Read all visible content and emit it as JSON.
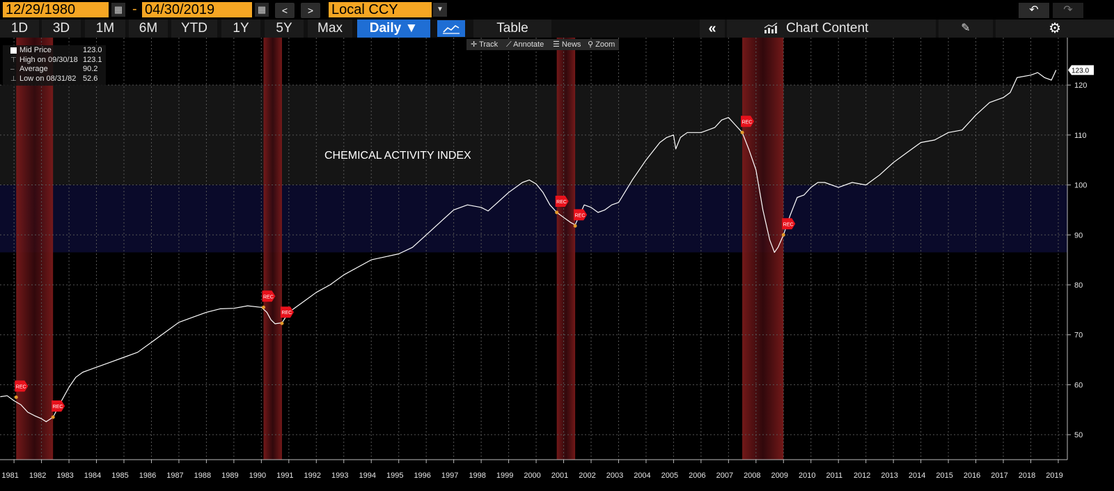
{
  "header": {
    "start_date": "12/29/1980",
    "date_separator": "-",
    "end_date": "04/30/2019",
    "prev_label": "<",
    "next_label": ">",
    "currency": "Local CCY",
    "undo_label": "↶",
    "redo_label": "↷"
  },
  "periods": [
    "1D",
    "3D",
    "1M",
    "6M",
    "YTD",
    "1Y",
    "5Y",
    "Max"
  ],
  "frequency": "Daily ▼",
  "table_label": "Table",
  "collapse_label": "«",
  "chart_content_label": "Chart Content",
  "pen_label": "✎",
  "gear_label": "⚙",
  "tools": [
    "Track",
    "Annotate",
    "News",
    "Zoom"
  ],
  "legend": [
    {
      "label": "Mid Price",
      "value": "123.0"
    },
    {
      "label": "High on 09/30/18",
      "value": "123.1"
    },
    {
      "label": "Average",
      "value": "90.2"
    },
    {
      "label": "Low on 08/31/82",
      "value": "52.6"
    }
  ],
  "colors": {
    "accent": "#f5a623",
    "button": "#1f6ed4",
    "line": "#ffffff",
    "recession": "#6b1414",
    "band": "#0a0a2a"
  },
  "chart_data": {
    "type": "line",
    "title": "CHEMICAL ACTIVITY INDEX",
    "xlabel": "",
    "ylabel": "",
    "xlim": [
      1980.99,
      2019.83
    ],
    "ylim": [
      45,
      129.5
    ],
    "yticks": [
      50,
      60,
      70,
      80,
      90,
      100,
      110,
      120
    ],
    "xticks": [
      1981,
      1982,
      1983,
      1984,
      1985,
      1986,
      1987,
      1988,
      1989,
      1990,
      1991,
      1992,
      1993,
      1994,
      1995,
      1996,
      1997,
      1998,
      1999,
      2000,
      2001,
      2002,
      2003,
      2004,
      2005,
      2006,
      2007,
      2008,
      2009,
      2010,
      2011,
      2012,
      2013,
      2014,
      2015,
      2016,
      2017,
      2018,
      2019
    ],
    "last_value_label": "123.0",
    "grid": true,
    "bands": [
      {
        "from": 100,
        "to": 120,
        "color": "#151515"
      },
      {
        "from": 86.5,
        "to": 100,
        "color": "#0a0a2a"
      }
    ],
    "recessions": [
      {
        "start": 1981.58,
        "end": 1982.92,
        "marker_start": 1981.58,
        "marker_start_y": 57.5,
        "marker_end": 1982.92,
        "marker_end_y": 53.5
      },
      {
        "start": 1990.58,
        "end": 1991.25,
        "marker_start": 1990.58,
        "marker_start_y": 75.5,
        "marker_end": 1991.25,
        "marker_end_y": 72.3
      },
      {
        "start": 2001.25,
        "end": 2001.92,
        "marker_start": 2001.25,
        "marker_start_y": 94.5,
        "marker_end": 2001.92,
        "marker_end_y": 91.8
      },
      {
        "start": 2008.0,
        "end": 2009.5,
        "marker_start": 2008.0,
        "marker_start_y": 110.5,
        "marker_end": 2009.5,
        "marker_end_y": 90.0
      }
    ],
    "recession_label": "REC",
    "series": [
      {
        "x": [
          1981.0,
          1981.25,
          1981.5,
          1981.75,
          1982.0,
          1982.25,
          1982.5,
          1982.67,
          1982.92,
          1983.25,
          1983.5,
          1983.75,
          1984.0,
          1984.5,
          1985.0,
          1985.5,
          1986.0,
          1986.5,
          1987.0,
          1987.5,
          1988.0,
          1988.5,
          1989.0,
          1989.5,
          1990.0,
          1990.5,
          1990.7,
          1990.85,
          1991.0,
          1991.25,
          1991.5,
          1992.0,
          1992.5,
          1993.0,
          1993.5,
          1994.0,
          1994.5,
          1995.0,
          1995.5,
          1996.0,
          1996.5,
          1997.0,
          1997.5,
          1998.0,
          1998.5,
          1998.75,
          1999.0,
          1999.5,
          2000.0,
          2000.25,
          2000.5,
          2000.75,
          2001.0,
          2001.25,
          2001.5,
          2001.75,
          2001.92,
          2002.0,
          2002.25,
          2002.5,
          2002.75,
          2003.0,
          2003.25,
          2003.5,
          2004.0,
          2004.5,
          2005.0,
          2005.25,
          2005.5,
          2005.58,
          2005.75,
          2006.0,
          2006.5,
          2007.0,
          2007.25,
          2007.5,
          2007.75,
          2008.0,
          2008.25,
          2008.5,
          2008.75,
          2009.0,
          2009.17,
          2009.3,
          2009.5,
          2009.75,
          2010.0,
          2010.25,
          2010.5,
          2010.75,
          2011.0,
          2011.5,
          2012.0,
          2012.5,
          2013.0,
          2013.5,
          2014.0,
          2014.5,
          2015.0,
          2015.5,
          2016.0,
          2016.5,
          2017.0,
          2017.5,
          2017.75,
          2018.0,
          2018.5,
          2018.75,
          2019.0,
          2019.25,
          2019.42
        ],
        "y": [
          57.6,
          57.8,
          56.8,
          56.0,
          54.5,
          53.8,
          53.2,
          52.6,
          53.5,
          57.0,
          59.5,
          61.5,
          62.5,
          63.5,
          64.5,
          65.5,
          66.5,
          68.5,
          70.5,
          72.5,
          73.5,
          74.5,
          75.2,
          75.3,
          75.8,
          75.5,
          74.5,
          73.0,
          72.2,
          72.4,
          74.5,
          76.5,
          78.5,
          80.0,
          82.0,
          83.5,
          85.0,
          85.6,
          86.2,
          87.5,
          90.0,
          92.5,
          95.0,
          96.0,
          95.5,
          94.8,
          96.0,
          98.5,
          100.5,
          101.0,
          100.2,
          98.5,
          96.0,
          94.5,
          93.5,
          92.5,
          92.0,
          93.0,
          96.0,
          95.5,
          94.5,
          95.0,
          96.0,
          96.5,
          101.0,
          105.0,
          108.5,
          109.5,
          110.0,
          107.2,
          109.5,
          110.5,
          110.5,
          111.5,
          113.0,
          113.5,
          112.0,
          110.5,
          107.0,
          103.0,
          95.0,
          89.0,
          86.5,
          87.5,
          90.0,
          94.0,
          97.5,
          98.0,
          99.5,
          100.5,
          100.5,
          99.5,
          100.5,
          100.0,
          102.0,
          104.5,
          106.5,
          108.5,
          109.0,
          110.5,
          111.0,
          114.0,
          116.5,
          117.5,
          118.5,
          121.5,
          122.0,
          122.5,
          121.5,
          121.0,
          123.0
        ]
      }
    ]
  }
}
